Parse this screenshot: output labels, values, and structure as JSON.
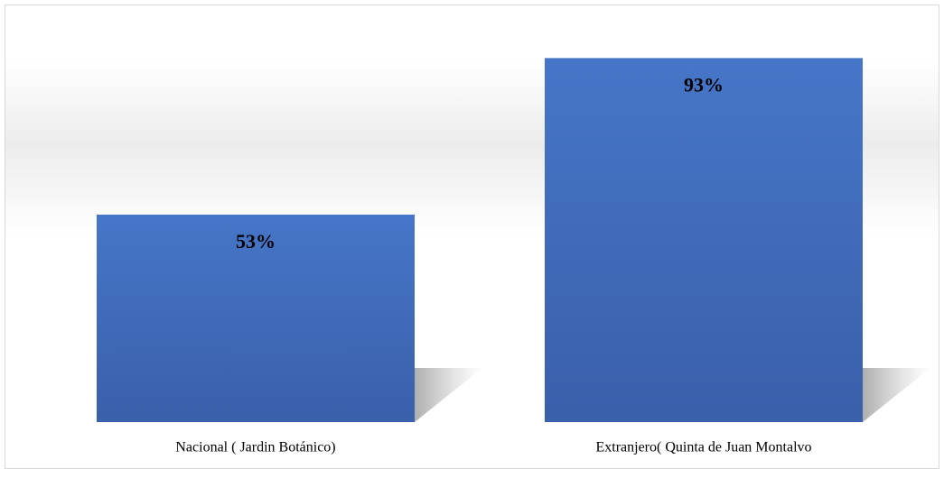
{
  "chart_data": {
    "type": "bar",
    "categories": [
      "Nacional ( Jardin Botánico)",
      "Extranjero( Quinta de Juan Montalvo"
    ],
    "values": [
      53,
      93
    ],
    "value_labels": [
      "53%",
      "93%"
    ],
    "color": "#4472c4"
  }
}
